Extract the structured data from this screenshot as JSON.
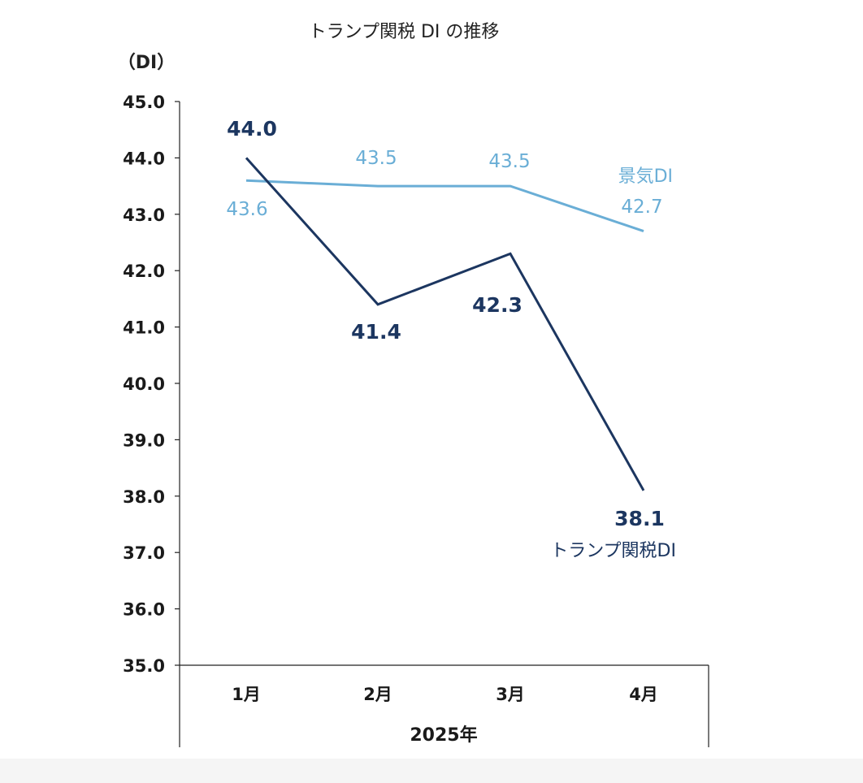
{
  "chart_data": {
    "type": "line",
    "title": "トランプ関税 DI の推移",
    "ylabel": "（DI）",
    "ylim": [
      35.0,
      45.0
    ],
    "yticks": [
      "45.0",
      "44.0",
      "43.0",
      "42.0",
      "41.0",
      "40.0",
      "39.0",
      "38.0",
      "37.0",
      "36.0",
      "35.0"
    ],
    "categories": [
      "1月",
      "2月",
      "3月",
      "4月"
    ],
    "xgroup_label": "2025年",
    "grid": false,
    "series": [
      {
        "name": "トランプ関税DI",
        "color": "#1c3660",
        "values": [
          44.0,
          41.4,
          42.3,
          38.1
        ],
        "labels": [
          "44.0",
          "41.4",
          "42.3",
          "38.1"
        ]
      },
      {
        "name": "景気DI",
        "color": "#6aaed6",
        "values": [
          43.6,
          43.5,
          43.5,
          42.7
        ],
        "labels": [
          "43.6",
          "43.5",
          "43.5",
          "42.7"
        ]
      }
    ]
  }
}
